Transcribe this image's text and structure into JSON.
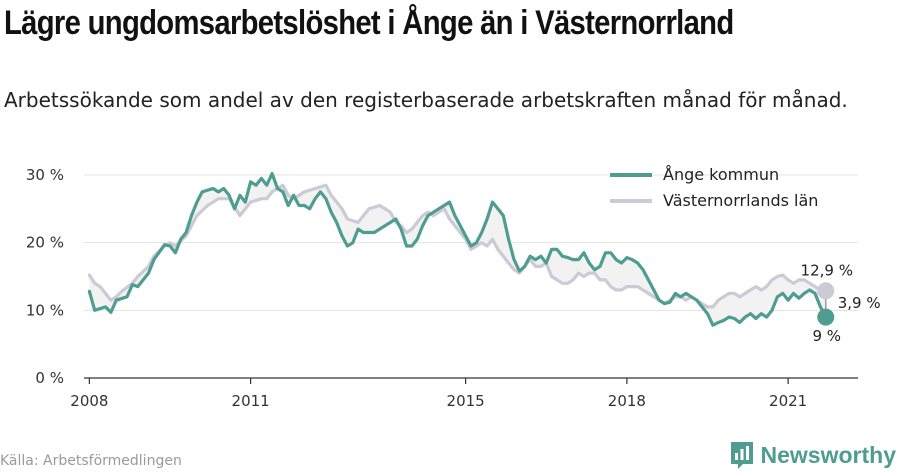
{
  "title": "Lägre ungdomsarbetslöshet i Ånge än i Västernorrland",
  "subtitle": "Arbetssökande som andel av den registerbaserade arbetskraften månad för månad.",
  "source": "Källa: Arbetsförmedlingen",
  "brand": "Newsworthy",
  "chart_data": {
    "type": "line",
    "title": "Lägre ungdomsarbetslöshet i Ånge än i Västernorrland",
    "xlabel": "",
    "ylabel": "",
    "xlim": [
      2007.9,
      2022.3
    ],
    "ylim": [
      0,
      30
    ],
    "x_ticks": [
      2008,
      2011,
      2015,
      2018,
      2021
    ],
    "x_tick_labels": [
      "2008",
      "2011",
      "2015",
      "2018",
      "2021"
    ],
    "y_ticks": [
      0,
      10,
      20,
      30
    ],
    "y_tick_labels": [
      "0 %",
      "10 %",
      "20 %",
      "30 %"
    ],
    "grid": true,
    "legend": "top-right",
    "series": [
      {
        "name": "Ånge kommun",
        "color": "#4f9c91",
        "points": [
          [
            2008.0,
            12.8
          ],
          [
            2008.1,
            10.0
          ],
          [
            2008.3,
            10.5
          ],
          [
            2008.4,
            9.7
          ],
          [
            2008.5,
            11.5
          ],
          [
            2008.7,
            12.0
          ],
          [
            2008.8,
            13.8
          ],
          [
            2008.9,
            13.5
          ],
          [
            2009.1,
            15.5
          ],
          [
            2009.2,
            17.5
          ],
          [
            2009.4,
            19.7
          ],
          [
            2009.5,
            19.5
          ],
          [
            2009.6,
            18.5
          ],
          [
            2009.7,
            20.5
          ],
          [
            2009.8,
            21.5
          ],
          [
            2009.9,
            24.0
          ],
          [
            2010.0,
            26.0
          ],
          [
            2010.1,
            27.5
          ],
          [
            2010.3,
            28.0
          ],
          [
            2010.4,
            27.5
          ],
          [
            2010.5,
            28.0
          ],
          [
            2010.6,
            27.0
          ],
          [
            2010.7,
            25.0
          ],
          [
            2010.8,
            27.0
          ],
          [
            2010.9,
            26.0
          ],
          [
            2011.0,
            29.0
          ],
          [
            2011.1,
            28.5
          ],
          [
            2011.2,
            29.5
          ],
          [
            2011.3,
            28.5
          ],
          [
            2011.4,
            30.2
          ],
          [
            2011.5,
            28.0
          ],
          [
            2011.6,
            27.5
          ],
          [
            2011.7,
            25.5
          ],
          [
            2011.8,
            27.0
          ],
          [
            2011.9,
            25.5
          ],
          [
            2012.0,
            25.5
          ],
          [
            2012.1,
            25.0
          ],
          [
            2012.2,
            26.5
          ],
          [
            2012.3,
            27.5
          ],
          [
            2012.4,
            26.5
          ],
          [
            2012.5,
            24.5
          ],
          [
            2012.6,
            23.0
          ],
          [
            2012.7,
            21.0
          ],
          [
            2012.8,
            19.5
          ],
          [
            2012.9,
            20.0
          ],
          [
            2013.0,
            22.0
          ],
          [
            2013.1,
            21.5
          ],
          [
            2013.3,
            21.5
          ],
          [
            2013.4,
            22.0
          ],
          [
            2013.5,
            22.5
          ],
          [
            2013.7,
            23.5
          ],
          [
            2013.8,
            22.0
          ],
          [
            2013.9,
            19.5
          ],
          [
            2014.0,
            19.5
          ],
          [
            2014.1,
            20.5
          ],
          [
            2014.2,
            22.5
          ],
          [
            2014.3,
            24.0
          ],
          [
            2014.4,
            24.5
          ],
          [
            2014.5,
            25.0
          ],
          [
            2014.7,
            26.0
          ],
          [
            2014.8,
            24.0
          ],
          [
            2014.9,
            22.5
          ],
          [
            2015.0,
            21.0
          ],
          [
            2015.1,
            19.5
          ],
          [
            2015.2,
            20.0
          ],
          [
            2015.3,
            21.5
          ],
          [
            2015.4,
            23.5
          ],
          [
            2015.5,
            26.0
          ],
          [
            2015.6,
            25.0
          ],
          [
            2015.7,
            24.0
          ],
          [
            2015.8,
            20.5
          ],
          [
            2015.9,
            17.5
          ],
          [
            2016.0,
            15.8
          ],
          [
            2016.1,
            16.5
          ],
          [
            2016.2,
            18.0
          ],
          [
            2016.3,
            17.5
          ],
          [
            2016.4,
            18.0
          ],
          [
            2016.5,
            17.0
          ],
          [
            2016.6,
            19.0
          ],
          [
            2016.7,
            19.0
          ],
          [
            2016.8,
            18.0
          ],
          [
            2016.9,
            17.8
          ],
          [
            2017.0,
            17.5
          ],
          [
            2017.1,
            17.5
          ],
          [
            2017.2,
            18.5
          ],
          [
            2017.3,
            17.0
          ],
          [
            2017.4,
            16.0
          ],
          [
            2017.5,
            16.5
          ],
          [
            2017.6,
            18.5
          ],
          [
            2017.7,
            18.5
          ],
          [
            2017.8,
            17.5
          ],
          [
            2017.9,
            17.0
          ],
          [
            2018.0,
            17.8
          ],
          [
            2018.1,
            17.5
          ],
          [
            2018.2,
            17.0
          ],
          [
            2018.3,
            16.0
          ],
          [
            2018.4,
            14.5
          ],
          [
            2018.5,
            13.0
          ],
          [
            2018.6,
            11.5
          ],
          [
            2018.7,
            11.0
          ],
          [
            2018.8,
            11.2
          ],
          [
            2018.9,
            12.5
          ],
          [
            2019.0,
            12.0
          ],
          [
            2019.1,
            12.5
          ],
          [
            2019.2,
            12.0
          ],
          [
            2019.3,
            11.5
          ],
          [
            2019.4,
            10.5
          ],
          [
            2019.5,
            9.5
          ],
          [
            2019.6,
            7.8
          ],
          [
            2019.7,
            8.2
          ],
          [
            2019.8,
            8.5
          ],
          [
            2019.9,
            9.0
          ],
          [
            2020.0,
            8.8
          ],
          [
            2020.1,
            8.2
          ],
          [
            2020.2,
            9.0
          ],
          [
            2020.3,
            9.5
          ],
          [
            2020.4,
            8.8
          ],
          [
            2020.5,
            9.5
          ],
          [
            2020.6,
            9.0
          ],
          [
            2020.7,
            10.0
          ],
          [
            2020.8,
            12.0
          ],
          [
            2020.9,
            12.5
          ],
          [
            2021.0,
            11.5
          ],
          [
            2021.1,
            12.5
          ],
          [
            2021.2,
            11.8
          ],
          [
            2021.3,
            12.5
          ],
          [
            2021.4,
            13.0
          ],
          [
            2021.5,
            12.5
          ],
          [
            2021.6,
            10.5
          ],
          [
            2021.7,
            9.0
          ]
        ]
      },
      {
        "name": "Västernorrlands län",
        "color": "#cccad6",
        "points": [
          [
            2008.0,
            15.2
          ],
          [
            2008.1,
            14.0
          ],
          [
            2008.2,
            13.5
          ],
          [
            2008.3,
            12.5
          ],
          [
            2008.4,
            11.5
          ],
          [
            2008.5,
            12.0
          ],
          [
            2008.6,
            12.8
          ],
          [
            2008.8,
            14.0
          ],
          [
            2008.9,
            15.0
          ],
          [
            2009.1,
            16.5
          ],
          [
            2009.2,
            18.0
          ],
          [
            2009.4,
            19.5
          ],
          [
            2009.5,
            20.0
          ],
          [
            2009.6,
            19.5
          ],
          [
            2009.8,
            21.0
          ],
          [
            2009.9,
            22.5
          ],
          [
            2010.0,
            24.0
          ],
          [
            2010.2,
            25.5
          ],
          [
            2010.4,
            26.5
          ],
          [
            2010.6,
            26.5
          ],
          [
            2010.8,
            24.0
          ],
          [
            2011.0,
            26.0
          ],
          [
            2011.2,
            26.5
          ],
          [
            2011.3,
            26.5
          ],
          [
            2011.4,
            27.5
          ],
          [
            2011.5,
            28.0
          ],
          [
            2011.6,
            28.5
          ],
          [
            2011.7,
            27.0
          ],
          [
            2011.8,
            26.5
          ],
          [
            2012.0,
            27.5
          ],
          [
            2012.2,
            28.0
          ],
          [
            2012.4,
            28.5
          ],
          [
            2012.5,
            27.0
          ],
          [
            2012.7,
            25.0
          ],
          [
            2012.8,
            23.5
          ],
          [
            2013.0,
            23.0
          ],
          [
            2013.2,
            25.0
          ],
          [
            2013.4,
            25.5
          ],
          [
            2013.5,
            25.0
          ],
          [
            2013.6,
            24.5
          ],
          [
            2013.7,
            23.0
          ],
          [
            2013.8,
            22.5
          ],
          [
            2013.9,
            21.5
          ],
          [
            2014.0,
            22.0
          ],
          [
            2014.1,
            23.0
          ],
          [
            2014.2,
            24.0
          ],
          [
            2014.3,
            24.5
          ],
          [
            2014.4,
            24.0
          ],
          [
            2014.5,
            24.5
          ],
          [
            2014.6,
            25.0
          ],
          [
            2014.7,
            23.5
          ],
          [
            2014.8,
            22.5
          ],
          [
            2014.9,
            21.5
          ],
          [
            2015.0,
            20.5
          ],
          [
            2015.1,
            19.0
          ],
          [
            2015.2,
            19.5
          ],
          [
            2015.3,
            20.0
          ],
          [
            2015.4,
            19.5
          ],
          [
            2015.5,
            20.5
          ],
          [
            2015.6,
            19.0
          ],
          [
            2015.7,
            18.0
          ],
          [
            2015.8,
            17.0
          ],
          [
            2015.9,
            16.0
          ],
          [
            2016.0,
            15.5
          ],
          [
            2016.1,
            16.5
          ],
          [
            2016.2,
            17.5
          ],
          [
            2016.3,
            16.5
          ],
          [
            2016.4,
            16.5
          ],
          [
            2016.5,
            17.0
          ],
          [
            2016.6,
            15.0
          ],
          [
            2016.7,
            14.5
          ],
          [
            2016.8,
            14.0
          ],
          [
            2016.9,
            14.0
          ],
          [
            2017.0,
            14.5
          ],
          [
            2017.1,
            15.5
          ],
          [
            2017.2,
            15.0
          ],
          [
            2017.3,
            15.5
          ],
          [
            2017.4,
            15.5
          ],
          [
            2017.5,
            14.5
          ],
          [
            2017.6,
            14.5
          ],
          [
            2017.7,
            13.5
          ],
          [
            2017.8,
            13.0
          ],
          [
            2017.9,
            13.0
          ],
          [
            2018.0,
            13.5
          ],
          [
            2018.1,
            13.5
          ],
          [
            2018.2,
            13.5
          ],
          [
            2018.3,
            13.0
          ],
          [
            2018.4,
            12.5
          ],
          [
            2018.5,
            12.0
          ],
          [
            2018.6,
            11.5
          ],
          [
            2018.7,
            11.0
          ],
          [
            2018.8,
            11.5
          ],
          [
            2018.9,
            12.0
          ],
          [
            2019.0,
            12.0
          ],
          [
            2019.1,
            11.5
          ],
          [
            2019.2,
            12.0
          ],
          [
            2019.3,
            11.5
          ],
          [
            2019.4,
            11.0
          ],
          [
            2019.5,
            10.5
          ],
          [
            2019.6,
            10.5
          ],
          [
            2019.7,
            11.5
          ],
          [
            2019.8,
            12.0
          ],
          [
            2019.9,
            12.5
          ],
          [
            2020.0,
            12.5
          ],
          [
            2020.1,
            12.0
          ],
          [
            2020.2,
            12.5
          ],
          [
            2020.3,
            13.0
          ],
          [
            2020.4,
            13.5
          ],
          [
            2020.5,
            13.0
          ],
          [
            2020.6,
            13.5
          ],
          [
            2020.7,
            14.5
          ],
          [
            2020.8,
            15.0
          ],
          [
            2020.9,
            15.2
          ],
          [
            2021.0,
            14.5
          ],
          [
            2021.1,
            14.0
          ],
          [
            2021.2,
            14.5
          ],
          [
            2021.3,
            14.5
          ],
          [
            2021.4,
            14.0
          ],
          [
            2021.5,
            13.5
          ],
          [
            2021.6,
            13.0
          ],
          [
            2021.7,
            12.9
          ]
        ]
      }
    ],
    "annotations": [
      {
        "text": "12,9 %",
        "series": "Västernorrlands län",
        "x": 2021.7,
        "y": 12.9,
        "position": "above"
      },
      {
        "text": "3,9 %",
        "note_of": "difference",
        "x": 2021.7,
        "y": 10.9,
        "position": "right"
      },
      {
        "text": "9 %",
        "series": "Ånge kommun",
        "x": 2021.7,
        "y": 9.0,
        "position": "below"
      }
    ]
  }
}
